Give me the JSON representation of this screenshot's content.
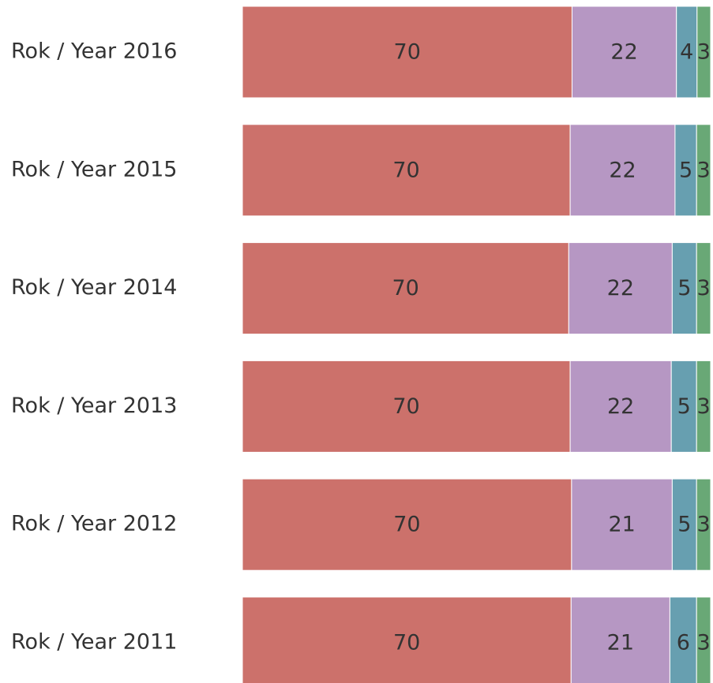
{
  "chart_data": {
    "type": "stacked-bar-horizontal",
    "categories": [
      "Rok / Year 2016",
      "Rok / Year 2015",
      "Rok / Year 2014",
      "Rok / Year 2013",
      "Rok / Year 2012",
      "Rok / Year 2011"
    ],
    "xlim": [
      0,
      100
    ],
    "series": [
      {
        "color": "#cc716b",
        "values": [
          70.4,
          70.0,
          69.7,
          70.0,
          70.3,
          70.2
        ],
        "value_labels": [
          "70",
          "70",
          "70",
          "70",
          "70",
          "70"
        ]
      },
      {
        "color": "#b697c3",
        "values": [
          22.3,
          22.4,
          22.1,
          21.6,
          21.5,
          21.1
        ],
        "value_labels": [
          "22",
          "22",
          "22",
          "22",
          "21",
          "21"
        ]
      },
      {
        "color": "#679fb0",
        "values": [
          4.4,
          4.6,
          5.2,
          5.4,
          5.2,
          5.7
        ],
        "value_labels": [
          "4",
          "5",
          "5",
          "5",
          "5",
          "6"
        ]
      },
      {
        "color": "#69a876",
        "values": [
          2.9,
          3.0,
          3.0,
          3.0,
          3.0,
          3.0
        ],
        "value_labels": [
          "3",
          "3",
          "3",
          "3",
          "3",
          "3"
        ]
      }
    ]
  }
}
